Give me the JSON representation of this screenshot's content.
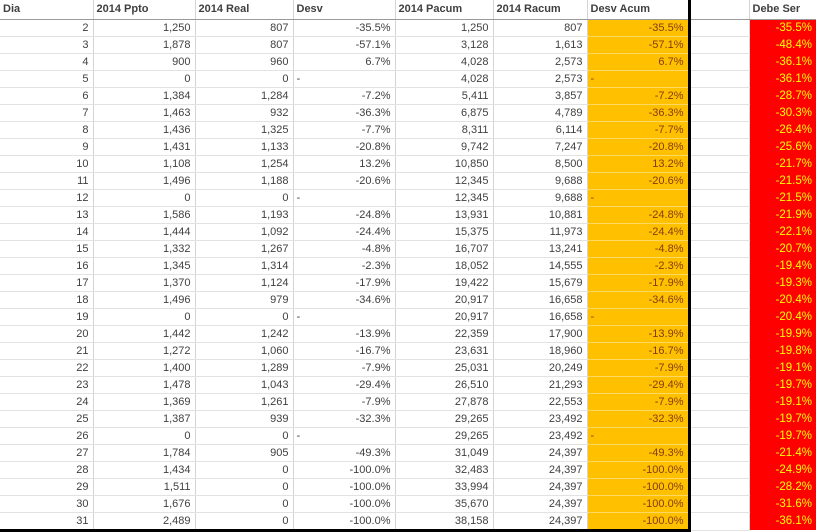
{
  "colors": {
    "desv_acum_bg": "#FFC000",
    "desv_acum_text": "#843C0C",
    "debe_ser_bg": "#FF0000",
    "debe_ser_text": "#FFFF00",
    "separator": "#000000",
    "gridline": "#d4d4d4"
  },
  "table": {
    "columns": [
      {
        "key": "dia",
        "label": "Dia"
      },
      {
        "key": "ppto",
        "label": "2014 Ppto"
      },
      {
        "key": "real",
        "label": "2014 Real"
      },
      {
        "key": "desv",
        "label": "Desv"
      },
      {
        "key": "pacum",
        "label": "2014 Pacum"
      },
      {
        "key": "racum",
        "label": "2014 Racum"
      },
      {
        "key": "desv_acum",
        "label": "Desv Acum"
      },
      {
        "key": "spacer",
        "label": ""
      },
      {
        "key": "debe_ser",
        "label": "Debe Ser"
      }
    ],
    "rows": [
      {
        "dia": "2",
        "ppto": "1,250",
        "real": "807",
        "desv": "-35.5%",
        "pacum": "1,250",
        "racum": "807",
        "desv_acum": "-35.5%",
        "spacer": "",
        "debe_ser": "-35.5%"
      },
      {
        "dia": "3",
        "ppto": "1,878",
        "real": "807",
        "desv": "-57.1%",
        "pacum": "3,128",
        "racum": "1,613",
        "desv_acum": "-57.1%",
        "spacer": "",
        "debe_ser": "-48.4%"
      },
      {
        "dia": "4",
        "ppto": "900",
        "real": "960",
        "desv": "6.7%",
        "pacum": "4,028",
        "racum": "2,573",
        "desv_acum": "6.7%",
        "spacer": "",
        "debe_ser": "-36.1%"
      },
      {
        "dia": "5",
        "ppto": "0",
        "real": "0",
        "desv": "-",
        "pacum": "4,028",
        "racum": "2,573",
        "desv_acum": "-",
        "spacer": "",
        "debe_ser": "-36.1%"
      },
      {
        "dia": "6",
        "ppto": "1,384",
        "real": "1,284",
        "desv": "-7.2%",
        "pacum": "5,411",
        "racum": "3,857",
        "desv_acum": "-7.2%",
        "spacer": "",
        "debe_ser": "-28.7%"
      },
      {
        "dia": "7",
        "ppto": "1,463",
        "real": "932",
        "desv": "-36.3%",
        "pacum": "6,875",
        "racum": "4,789",
        "desv_acum": "-36.3%",
        "spacer": "",
        "debe_ser": "-30.3%"
      },
      {
        "dia": "8",
        "ppto": "1,436",
        "real": "1,325",
        "desv": "-7.7%",
        "pacum": "8,311",
        "racum": "6,114",
        "desv_acum": "-7.7%",
        "spacer": "",
        "debe_ser": "-26.4%"
      },
      {
        "dia": "9",
        "ppto": "1,431",
        "real": "1,133",
        "desv": "-20.8%",
        "pacum": "9,742",
        "racum": "7,247",
        "desv_acum": "-20.8%",
        "spacer": "",
        "debe_ser": "-25.6%"
      },
      {
        "dia": "10",
        "ppto": "1,108",
        "real": "1,254",
        "desv": "13.2%",
        "pacum": "10,850",
        "racum": "8,500",
        "desv_acum": "13.2%",
        "spacer": "",
        "debe_ser": "-21.7%"
      },
      {
        "dia": "11",
        "ppto": "1,496",
        "real": "1,188",
        "desv": "-20.6%",
        "pacum": "12,345",
        "racum": "9,688",
        "desv_acum": "-20.6%",
        "spacer": "",
        "debe_ser": "-21.5%"
      },
      {
        "dia": "12",
        "ppto": "0",
        "real": "0",
        "desv": "-",
        "pacum": "12,345",
        "racum": "9,688",
        "desv_acum": "-",
        "spacer": "",
        "debe_ser": "-21.5%"
      },
      {
        "dia": "13",
        "ppto": "1,586",
        "real": "1,193",
        "desv": "-24.8%",
        "pacum": "13,931",
        "racum": "10,881",
        "desv_acum": "-24.8%",
        "spacer": "",
        "debe_ser": "-21.9%"
      },
      {
        "dia": "14",
        "ppto": "1,444",
        "real": "1,092",
        "desv": "-24.4%",
        "pacum": "15,375",
        "racum": "11,973",
        "desv_acum": "-24.4%",
        "spacer": "",
        "debe_ser": "-22.1%"
      },
      {
        "dia": "15",
        "ppto": "1,332",
        "real": "1,267",
        "desv": "-4.8%",
        "pacum": "16,707",
        "racum": "13,241",
        "desv_acum": "-4.8%",
        "spacer": "",
        "debe_ser": "-20.7%"
      },
      {
        "dia": "16",
        "ppto": "1,345",
        "real": "1,314",
        "desv": "-2.3%",
        "pacum": "18,052",
        "racum": "14,555",
        "desv_acum": "-2.3%",
        "spacer": "",
        "debe_ser": "-19.4%"
      },
      {
        "dia": "17",
        "ppto": "1,370",
        "real": "1,124",
        "desv": "-17.9%",
        "pacum": "19,422",
        "racum": "15,679",
        "desv_acum": "-17.9%",
        "spacer": "",
        "debe_ser": "-19.3%"
      },
      {
        "dia": "18",
        "ppto": "1,496",
        "real": "979",
        "desv": "-34.6%",
        "pacum": "20,917",
        "racum": "16,658",
        "desv_acum": "-34.6%",
        "spacer": "",
        "debe_ser": "-20.4%"
      },
      {
        "dia": "19",
        "ppto": "0",
        "real": "0",
        "desv": "-",
        "pacum": "20,917",
        "racum": "16,658",
        "desv_acum": "-",
        "spacer": "",
        "debe_ser": "-20.4%"
      },
      {
        "dia": "20",
        "ppto": "1,442",
        "real": "1,242",
        "desv": "-13.9%",
        "pacum": "22,359",
        "racum": "17,900",
        "desv_acum": "-13.9%",
        "spacer": "",
        "debe_ser": "-19.9%"
      },
      {
        "dia": "21",
        "ppto": "1,272",
        "real": "1,060",
        "desv": "-16.7%",
        "pacum": "23,631",
        "racum": "18,960",
        "desv_acum": "-16.7%",
        "spacer": "",
        "debe_ser": "-19.8%"
      },
      {
        "dia": "22",
        "ppto": "1,400",
        "real": "1,289",
        "desv": "-7.9%",
        "pacum": "25,031",
        "racum": "20,249",
        "desv_acum": "-7.9%",
        "spacer": "",
        "debe_ser": "-19.1%"
      },
      {
        "dia": "23",
        "ppto": "1,478",
        "real": "1,043",
        "desv": "-29.4%",
        "pacum": "26,510",
        "racum": "21,293",
        "desv_acum": "-29.4%",
        "spacer": "",
        "debe_ser": "-19.7%"
      },
      {
        "dia": "24",
        "ppto": "1,369",
        "real": "1,261",
        "desv": "-7.9%",
        "pacum": "27,878",
        "racum": "22,553",
        "desv_acum": "-7.9%",
        "spacer": "",
        "debe_ser": "-19.1%"
      },
      {
        "dia": "25",
        "ppto": "1,387",
        "real": "939",
        "desv": "-32.3%",
        "pacum": "29,265",
        "racum": "23,492",
        "desv_acum": "-32.3%",
        "spacer": "",
        "debe_ser": "-19.7%"
      },
      {
        "dia": "26",
        "ppto": "0",
        "real": "0",
        "desv": "-",
        "pacum": "29,265",
        "racum": "23,492",
        "desv_acum": "-",
        "spacer": "",
        "debe_ser": "-19.7%"
      },
      {
        "dia": "27",
        "ppto": "1,784",
        "real": "905",
        "desv": "-49.3%",
        "pacum": "31,049",
        "racum": "24,397",
        "desv_acum": "-49.3%",
        "spacer": "",
        "debe_ser": "-21.4%"
      },
      {
        "dia": "28",
        "ppto": "1,434",
        "real": "0",
        "desv": "-100.0%",
        "pacum": "32,483",
        "racum": "24,397",
        "desv_acum": "-100.0%",
        "spacer": "",
        "debe_ser": "-24.9%"
      },
      {
        "dia": "29",
        "ppto": "1,511",
        "real": "0",
        "desv": "-100.0%",
        "pacum": "33,994",
        "racum": "24,397",
        "desv_acum": "-100.0%",
        "spacer": "",
        "debe_ser": "-28.2%"
      },
      {
        "dia": "30",
        "ppto": "1,676",
        "real": "0",
        "desv": "-100.0%",
        "pacum": "35,670",
        "racum": "24,397",
        "desv_acum": "-100.0%",
        "spacer": "",
        "debe_ser": "-31.6%"
      },
      {
        "dia": "31",
        "ppto": "2,489",
        "real": "0",
        "desv": "-100.0%",
        "pacum": "38,158",
        "racum": "24,397",
        "desv_acum": "-100.0%",
        "spacer": "",
        "debe_ser": "-36.1%"
      }
    ]
  }
}
